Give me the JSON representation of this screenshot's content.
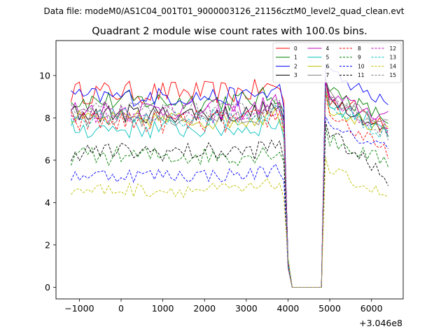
{
  "suptitle": "Data file: modeM0/AS1C04_001T01_9000003126_21156cztM0_level2_quad_clean.evt",
  "chart_data": {
    "type": "line",
    "title": "Quadrant 2 module wise count rates with 100.0s bins.",
    "xlabel": "",
    "ylabel": "",
    "offset_text": "+3.046e8",
    "xlim": [
      -1560,
      6760
    ],
    "ylim": [
      -0.55,
      11.65
    ],
    "xticks": [
      -1000,
      0,
      1000,
      2000,
      3000,
      4000,
      5000,
      6000
    ],
    "xtick_labels": [
      "−1000",
      "0",
      "1000",
      "2000",
      "3000",
      "4000",
      "5000",
      "6000"
    ],
    "yticks": [
      0,
      2,
      4,
      6,
      8,
      10
    ],
    "ytick_labels": [
      "0",
      "2",
      "4",
      "6",
      "8",
      "10"
    ],
    "legend_position": "upper-right",
    "x_start": -1200,
    "x_step": 100,
    "gap_start_x": 4100,
    "gap_end_x": 4800,
    "series": [
      {
        "name": "0",
        "color": "#ff0000",
        "dash": false,
        "level": 9.2,
        "post": 9.0,
        "end": 7.8,
        "amp": 0.55
      },
      {
        "name": "1",
        "color": "#008000",
        "dash": false,
        "level": 8.8,
        "post": 9.4,
        "end": 7.9,
        "amp": 0.5
      },
      {
        "name": "2",
        "color": "#0000ff",
        "dash": false,
        "level": 9.0,
        "post": 10.2,
        "end": 8.6,
        "amp": 0.45
      },
      {
        "name": "3",
        "color": "#000000",
        "dash": false,
        "level": 8.2,
        "post": 9.2,
        "end": 7.2,
        "amp": 0.45
      },
      {
        "name": "4",
        "color": "#bf00bf",
        "dash": false,
        "level": 8.4,
        "post": 9.0,
        "end": 8.0,
        "amp": 0.5
      },
      {
        "name": "5",
        "color": "#00bfbf",
        "dash": false,
        "level": 7.5,
        "post": 8.7,
        "end": 7.6,
        "amp": 0.5
      },
      {
        "name": "6",
        "color": "#bfbf00",
        "dash": false,
        "level": 7.9,
        "post": 8.6,
        "end": 7.3,
        "amp": 0.45
      },
      {
        "name": "7",
        "color": "#808080",
        "dash": false,
        "level": 8.0,
        "post": 9.1,
        "end": 7.6,
        "amp": 0.45
      },
      {
        "name": "8",
        "color": "#ff0000",
        "dash": true,
        "level": 7.8,
        "post": 8.4,
        "end": 6.2,
        "amp": 0.55
      },
      {
        "name": "9",
        "color": "#008000",
        "dash": true,
        "level": 6.2,
        "post": 7.0,
        "end": 5.9,
        "amp": 0.45
      },
      {
        "name": "10",
        "color": "#0000ff",
        "dash": true,
        "level": 5.3,
        "post": 7.5,
        "end": 6.6,
        "amp": 0.35
      },
      {
        "name": "11",
        "color": "#000000",
        "dash": true,
        "level": 6.4,
        "post": 7.4,
        "end": 5.1,
        "amp": 0.45
      },
      {
        "name": "12",
        "color": "#bf00bf",
        "dash": true,
        "level": 8.2,
        "post": 8.9,
        "end": 7.4,
        "amp": 0.45
      },
      {
        "name": "13",
        "color": "#00bfbf",
        "dash": true,
        "level": 8.0,
        "post": 8.6,
        "end": 7.2,
        "amp": 0.45
      },
      {
        "name": "14",
        "color": "#bfbf00",
        "dash": true,
        "level": 4.6,
        "post": 5.6,
        "end": 4.3,
        "amp": 0.35
      },
      {
        "name": "15",
        "color": "#808080",
        "dash": true,
        "level": 8.3,
        "post": 9.0,
        "end": 7.3,
        "amp": 0.45
      }
    ]
  }
}
